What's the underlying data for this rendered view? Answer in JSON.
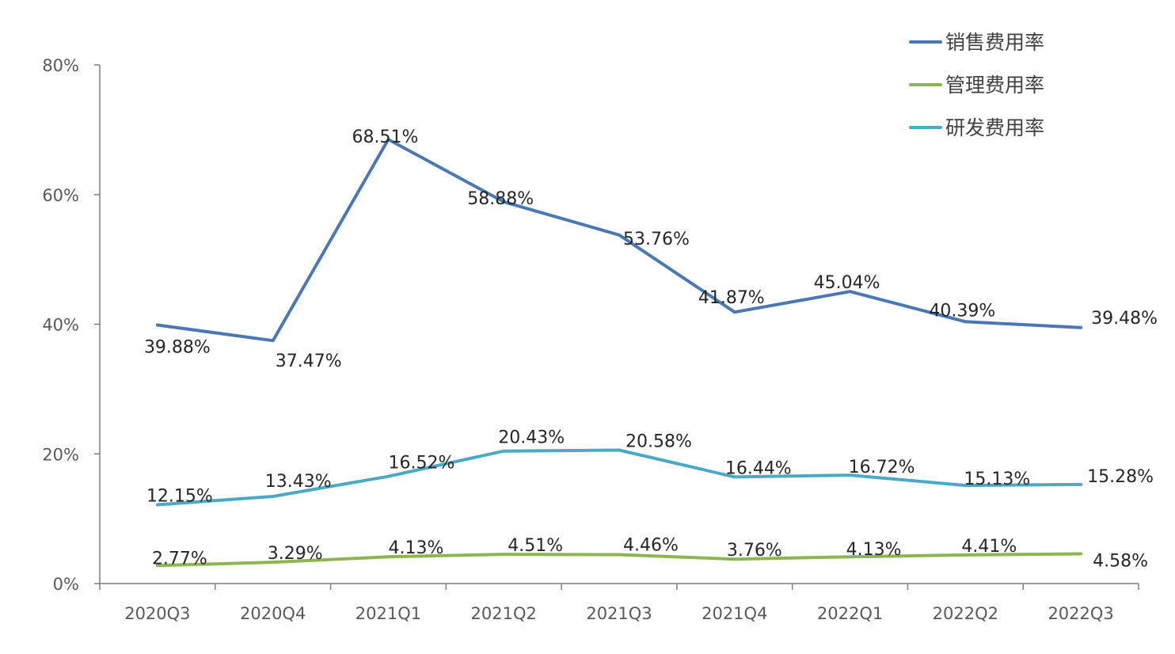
{
  "chart_data": {
    "type": "line",
    "categories": [
      "2020Q3",
      "2020Q4",
      "2021Q1",
      "2021Q2",
      "2021Q3",
      "2021Q4",
      "2022Q1",
      "2022Q2",
      "2022Q3"
    ],
    "ylim": [
      0,
      80
    ],
    "yticks": [
      "0%",
      "20%",
      "40%",
      "60%",
      "80%"
    ],
    "ytick_values": [
      0,
      20,
      40,
      60,
      80
    ],
    "legend_position": "top-right",
    "grid": false,
    "series": [
      {
        "name": "销售费用率",
        "color": "#4a78b5",
        "values": [
          39.88,
          37.47,
          68.51,
          58.88,
          53.76,
          41.87,
          45.04,
          40.39,
          39.48
        ],
        "labels": [
          "39.88%",
          "37.47%",
          "68.51%",
          "58.88%",
          "53.76%",
          "41.87%",
          "45.04%",
          "40.39%",
          "39.48%"
        ]
      },
      {
        "name": "管理费用率",
        "color": "#8db650",
        "values": [
          2.77,
          3.29,
          4.13,
          4.51,
          4.46,
          3.76,
          4.13,
          4.41,
          4.58
        ],
        "labels": [
          "2.77%",
          "3.29%",
          "4.13%",
          "4.51%",
          "4.46%",
          "3.76%",
          "4.13%",
          "4.41%",
          "4.58%"
        ]
      },
      {
        "name": "研发费用率",
        "color": "#4aaac4",
        "values": [
          12.15,
          13.43,
          16.52,
          20.43,
          20.58,
          16.44,
          16.72,
          15.13,
          15.28
        ],
        "labels": [
          "12.15%",
          "13.43%",
          "16.52%",
          "20.43%",
          "20.58%",
          "16.44%",
          "16.72%",
          "15.13%",
          "15.28%"
        ]
      }
    ]
  }
}
